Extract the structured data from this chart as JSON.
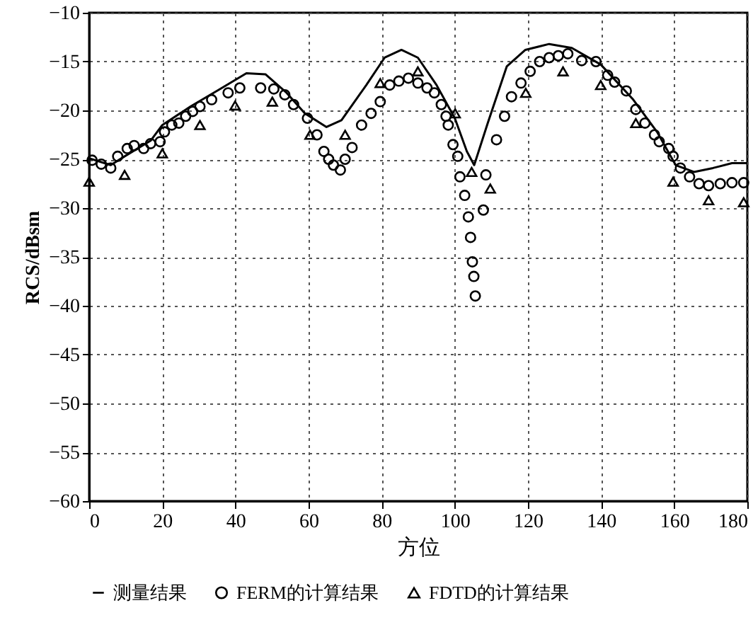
{
  "chart_data": {
    "type": "line",
    "xlabel": "方位",
    "ylabel": "RCS/dBsm",
    "xlim": [
      0,
      180
    ],
    "xticks": [
      0,
      20,
      40,
      60,
      80,
      100,
      120,
      140,
      160,
      180
    ],
    "ylim": [
      -60,
      -10
    ],
    "yticks": [
      -60,
      -55,
      -50,
      -45,
      -40,
      -35,
      -30,
      -25,
      -20,
      -15,
      -10
    ],
    "grid": true,
    "legend": "bottom",
    "series": [
      {
        "name": "测量结果",
        "type": "line",
        "marker": "none",
        "line_style": "solid",
        "color": "#000000",
        "x": [
          0,
          5.9,
          9.7,
          16.8,
          20,
          27.7,
          35.4,
          43,
          48.2,
          54,
          59,
          64.9,
          69,
          75.8,
          80.8,
          85.4,
          89.9,
          95,
          100,
          103.3,
          105.3,
          109,
          114.2,
          119.3,
          125.8,
          132,
          139.9,
          148.8,
          155.3,
          160.4,
          165.4,
          170.6,
          175.8,
          180
        ],
        "values": [
          -24.9,
          -25.6,
          -24.7,
          -23.1,
          -21.5,
          -19.6,
          -17.9,
          -16.2,
          -16.3,
          -18.2,
          -20.3,
          -21.7,
          -21,
          -17.4,
          -14.6,
          -13.8,
          -14.6,
          -17.4,
          -20.8,
          -24.2,
          -25.6,
          -21.3,
          -15.5,
          -13.8,
          -13.2,
          -13.6,
          -15.3,
          -18.9,
          -22.2,
          -25.6,
          -26.3,
          -25.9,
          -25.4,
          -25.4
        ]
      },
      {
        "name": "FERM的计算结果",
        "type": "scatter",
        "marker": "circle",
        "color": "#000000",
        "x": [
          0.8,
          3.3,
          5.9,
          7.8,
          10.4,
          12.3,
          14.9,
          16.8,
          19.4,
          20.6,
          22.6,
          24.5,
          26.4,
          28.3,
          30.3,
          33.5,
          38,
          41.2,
          46.9,
          50.5,
          53.5,
          55.9,
          59.7,
          62.3,
          64.2,
          65.5,
          66.8,
          68.7,
          70,
          71.9,
          74.5,
          77.1,
          79.6,
          82.2,
          84.7,
          87.3,
          89.9,
          92.4,
          94.4,
          96.3,
          97.6,
          98.2,
          99.5,
          100.8,
          101.4,
          102.7,
          103.7,
          104.3,
          104.8,
          105.2,
          105.6,
          107.8,
          108.5,
          111.4,
          113.6,
          115.5,
          118.1,
          120.6,
          123.2,
          125.8,
          128.3,
          130.9,
          134.7,
          138.6,
          141.8,
          143.7,
          146.9,
          149.5,
          152,
          154.6,
          155.9,
          158.5,
          159.7,
          161.7,
          164.2,
          166.8,
          169.4,
          172.6,
          175.8,
          179
        ],
        "values": [
          -25.1,
          -25.5,
          -25.9,
          -24.7,
          -23.9,
          -23.6,
          -23.9,
          -23.4,
          -23.2,
          -22.2,
          -21.5,
          -21.3,
          -20.6,
          -20.1,
          -19.6,
          -18.9,
          -18.2,
          -17.7,
          -17.7,
          -17.8,
          -18.4,
          -19.4,
          -20.8,
          -22.5,
          -24.2,
          -25,
          -25.6,
          -26.1,
          -25,
          -23.8,
          -21.5,
          -20.3,
          -19.1,
          -17.4,
          -17,
          -16.7,
          -17.2,
          -17.7,
          -18.2,
          -19.4,
          -20.6,
          -21.5,
          -23.5,
          -24.7,
          -26.8,
          -28.7,
          -30.9,
          -33,
          -35.5,
          -37,
          -39,
          -30.2,
          -26.6,
          -23,
          -20.6,
          -18.6,
          -17.2,
          -16,
          -15,
          -14.6,
          -14.4,
          -14.2,
          -14.9,
          -15,
          -16.4,
          -17.1,
          -18,
          -19.9,
          -21.3,
          -22.5,
          -23.2,
          -23.9,
          -24.7,
          -25.9,
          -26.8,
          -27.5,
          -27.7,
          -27.5,
          -27.4,
          -27.4
        ]
      },
      {
        "name": "FDTD的计算结果",
        "type": "scatter",
        "marker": "triangle",
        "color": "#000000",
        "x": [
          0,
          9.7,
          20,
          30.3,
          39.9,
          50.1,
          60.4,
          70,
          79.6,
          89.9,
          100.1,
          104.6,
          109.7,
          119.4,
          129.6,
          139.9,
          149.5,
          159.7,
          169.4,
          179
        ],
        "values": [
          -27.3,
          -26.6,
          -24.4,
          -21.5,
          -19.5,
          -19.1,
          -22.5,
          -22.5,
          -17.2,
          -16,
          -20.3,
          -26.3,
          -28,
          -18.2,
          -16,
          -17.4,
          -21.3,
          -27.3,
          -29.2,
          -29.4
        ]
      }
    ]
  }
}
